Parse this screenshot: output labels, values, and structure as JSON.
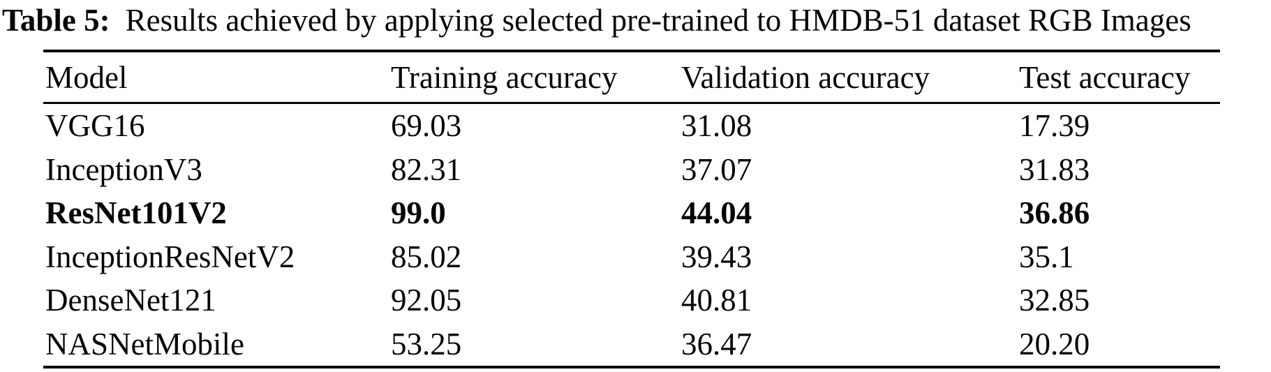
{
  "caption": {
    "label": "Table 5:",
    "text": "Results achieved by applying selected pre-trained to HMDB-51 dataset RGB Images"
  },
  "table": {
    "headers": {
      "model": "Model",
      "training": "Training accuracy",
      "validation": "Validation accuracy",
      "test": "Test accuracy"
    },
    "highlighted_row": "ResNet101V2",
    "rows": [
      {
        "model": "VGG16",
        "training": "69.03",
        "validation": "31.08",
        "test": "17.39"
      },
      {
        "model": "InceptionV3",
        "training": "82.31",
        "validation": "37.07",
        "test": "31.83"
      },
      {
        "model": "ResNet101V2",
        "training": "99.0",
        "validation": "44.04",
        "test": "36.86"
      },
      {
        "model": "InceptionResNetV2",
        "training": "85.02",
        "validation": "39.43",
        "test": "35.1"
      },
      {
        "model": "DenseNet121",
        "training": "92.05",
        "validation": "40.81",
        "test": "32.85"
      },
      {
        "model": "NASNetMobile",
        "training": "53.25",
        "validation": "36.47",
        "test": "20.20"
      }
    ]
  },
  "colors": {
    "text": "#050505",
    "background": "#ffffff",
    "rule": "#050505"
  }
}
